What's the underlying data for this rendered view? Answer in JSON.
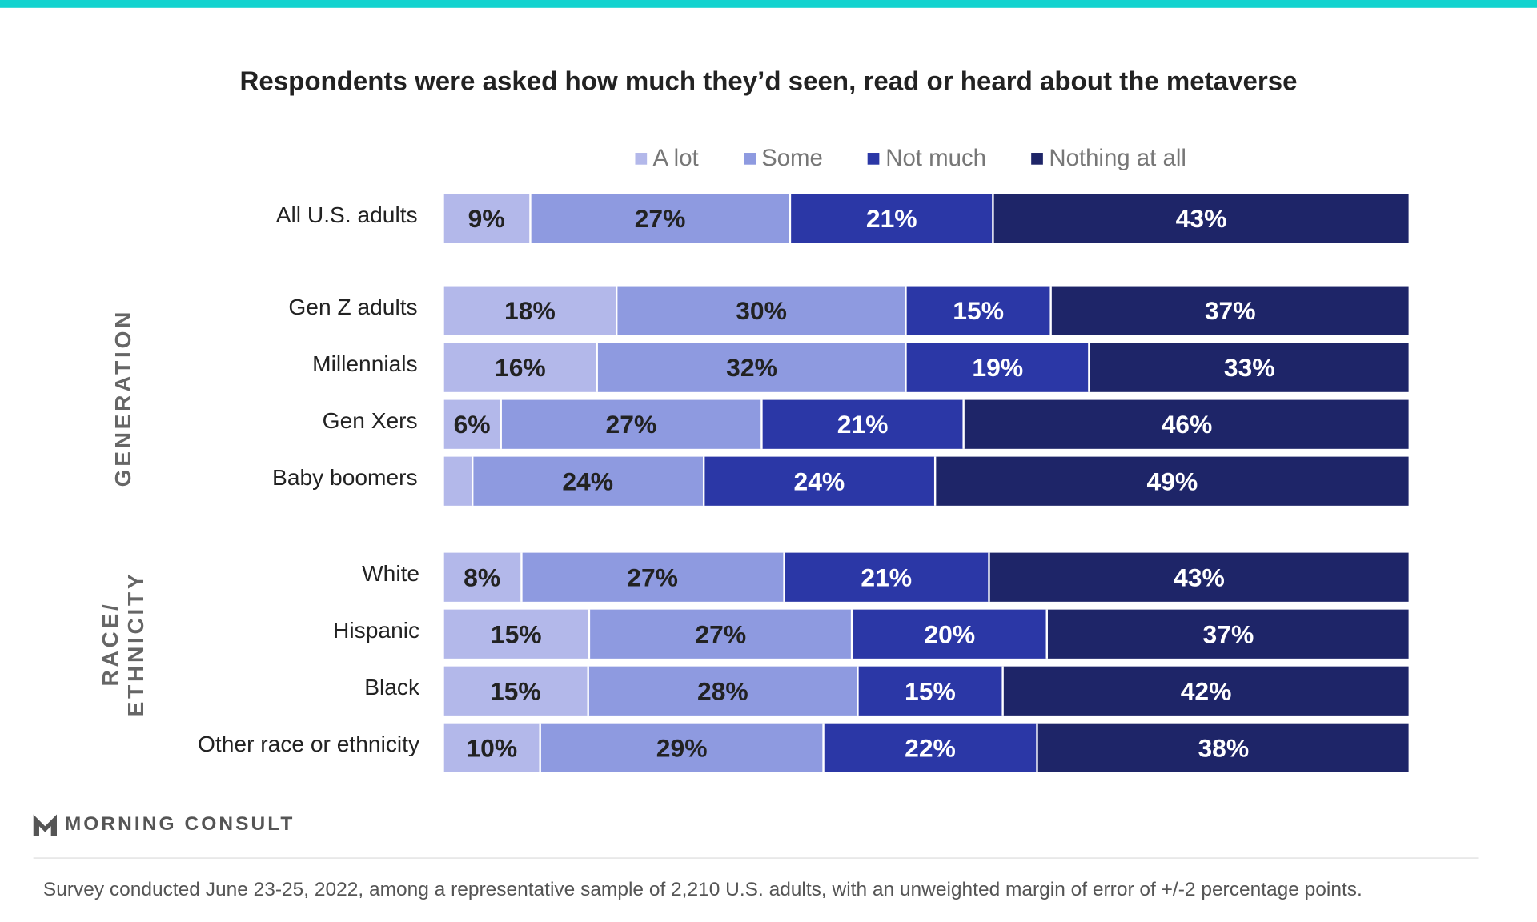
{
  "chart_data": {
    "type": "bar",
    "orientation": "horizontal",
    "stacked": true,
    "title": "Respondents were asked how much they’d seen, read or heard about the metaverse",
    "legend_position": "top",
    "series": [
      {
        "name": "A lot",
        "color": "#b3b8ea",
        "label_color": "#222222",
        "values": [
          9,
          18,
          16,
          6,
          3,
          8,
          15,
          15,
          10
        ]
      },
      {
        "name": "Some",
        "color": "#8e9ae0",
        "label_color": "#222222",
        "values": [
          27,
          30,
          32,
          27,
          24,
          27,
          27,
          28,
          29
        ]
      },
      {
        "name": "Not much",
        "color": "#2b37a6",
        "label_color": "#ffffff",
        "values": [
          21,
          15,
          19,
          21,
          24,
          21,
          20,
          15,
          22
        ]
      },
      {
        "name": "Nothing at all",
        "color": "#1e2568",
        "label_color": "#ffffff",
        "values": [
          43,
          37,
          33,
          46,
          49,
          43,
          37,
          42,
          38
        ]
      }
    ],
    "categories": [
      "All U.S. adults",
      "Gen Z adults",
      "Millennials",
      "Gen Xers",
      "Baby boomers",
      "White",
      "Hispanic",
      "Black",
      "Other race or ethnicity"
    ],
    "data_labels": [
      [
        "9%",
        "27%",
        "21%",
        "43%"
      ],
      [
        "18%",
        "30%",
        "15%",
        "37%"
      ],
      [
        "16%",
        "32%",
        "19%",
        "33%"
      ],
      [
        "6%",
        "27%",
        "21%",
        "46%"
      ],
      [
        "",
        "24%",
        "24%",
        "49%"
      ],
      [
        "8%",
        "27%",
        "21%",
        "43%"
      ],
      [
        "15%",
        "27%",
        "20%",
        "37%"
      ],
      [
        "15%",
        "28%",
        "15%",
        "42%"
      ],
      [
        "10%",
        "29%",
        "22%",
        "38%"
      ]
    ],
    "groups": [
      {
        "label": "GENERATION",
        "lines": [
          "GENERATION"
        ]
      },
      {
        "label": "RACE/ ETHNICITY",
        "lines": [
          "RACE/",
          "ETHNICITY"
        ]
      }
    ],
    "xlim": [
      0,
      100
    ]
  },
  "brand": {
    "logo_text": "MORNING CONSULT",
    "accent": "#12d3cf"
  },
  "footnote": "Survey conducted June 23-25, 2022, among a representative sample of 2,210 U.S. adults, with an unweighted margin of error of +/-2 percentage points."
}
